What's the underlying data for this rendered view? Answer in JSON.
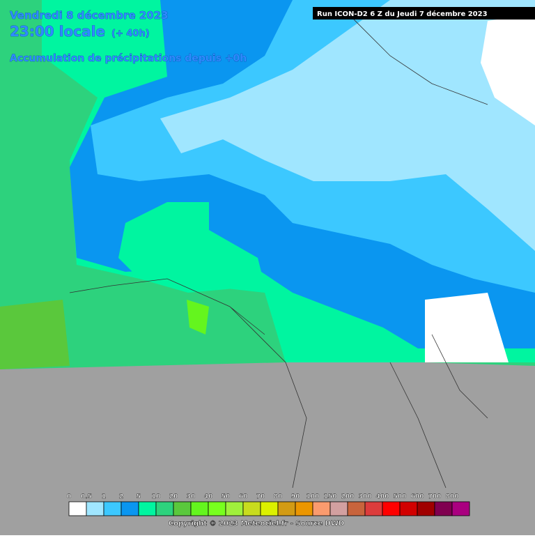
{
  "header": {
    "date": "Vendredi 8 décembre 2023",
    "time": "23:00 locale",
    "offset": "(+ 40h)",
    "subtitle": "Accumulation de précipitations depuis +0h",
    "run": "Run ICON-D2 6 Z du Jeudi 7 décembre 2023"
  },
  "legend": {
    "labels": [
      0,
      0.5,
      1,
      2,
      5,
      10,
      20,
      30,
      40,
      50,
      60,
      70,
      80,
      90,
      100,
      150,
      200,
      300,
      400,
      500,
      600,
      700,
      800
    ],
    "colors": [
      "#ffffff",
      "#a0e6ff",
      "#3cc8ff",
      "#0a96f0",
      "#00f5a0",
      "#2dd27d",
      "#5ac83c",
      "#64f51e",
      "#78ff1e",
      "#a0f03c",
      "#c8dc1e",
      "#dcf000",
      "#d29b14",
      "#eb9600",
      "#fa9b6e",
      "#d2a0a0",
      "#c8643c",
      "#dc3c3c",
      "#ff0000",
      "#d20000",
      "#a00000",
      "#800050",
      "#aa0080"
    ]
  },
  "footer": "Copyright © 2023 Meteociel.fr - Source DWD"
}
